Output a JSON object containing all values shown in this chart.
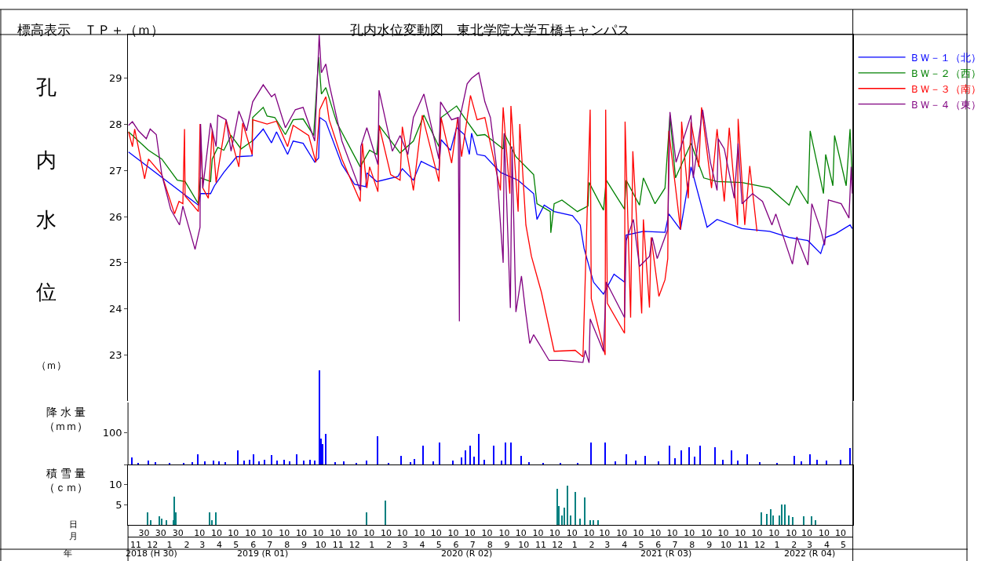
{
  "chart_data": [
    {
      "type": "line",
      "title": "孔内水位変動図　東北学院大学五橋キャンパス",
      "annotations": [
        "標高表示　ＴＰ＋（ｍ）"
      ],
      "ylabel": "孔内水位（ｍ）",
      "xlim": [
        "2018-11-01",
        "2022-06-01"
      ],
      "ylim": [
        22.02,
        29.95
      ],
      "yticks": [
        23,
        24,
        25,
        26,
        27,
        28,
        29
      ],
      "tick_labels": "y",
      "legend": "right",
      "line_style": "solid",
      "series": [
        {
          "name": "ＢＷ－１（北）",
          "color": "#0000ff",
          "x": [
            "2018-11-02",
            "2019-03-08",
            "2019-03-12",
            "2019-03-30",
            "2019-04-06",
            "2019-04-23",
            "2019-05-16",
            "2019-06-13",
            "2019-06-14",
            "2019-07-03",
            "2019-07-18",
            "2019-07-27",
            "2019-08-16",
            "2019-08-26",
            "2019-09-13",
            "2019-10-04",
            "2019-10-11",
            "2019-10-13",
            "2019-10-24",
            "2019-11-22",
            "2019-12-15",
            "2020-01-04",
            "2020-01-06",
            "2020-01-24",
            "2020-03-02",
            "2020-03-10",
            "2020-03-30",
            "2020-04-13",
            "2020-05-15",
            "2020-05-19",
            "2020-06-05",
            "2020-06-16",
            "2020-06-30",
            "2020-07-09",
            "2020-07-13",
            "2020-07-23",
            "2020-08-06",
            "2020-09-03",
            "2020-10-05",
            "2020-11-02",
            "2020-11-08",
            "2020-11-21",
            "2020-12-09",
            "2021-01-11",
            "2021-01-25",
            "2021-02-01",
            "2021-02-18",
            "2021-03-08",
            "2021-03-27",
            "2021-04-15",
            "2021-04-18",
            "2021-05-19",
            "2021-06-27",
            "2021-07-04",
            "2021-07-25",
            "2021-08-13",
            "2021-09-11",
            "2021-09-29",
            "2021-11-13",
            "2022-01-02",
            "2022-02-06",
            "2022-03-12",
            "2022-04-04",
            "2022-04-13",
            "2022-05-01",
            "2022-05-27",
            "2022-05-31"
          ],
          "values": [
            27.4,
            26.25,
            26.5,
            26.5,
            26.67,
            26.96,
            27.3,
            27.32,
            27.64,
            27.9,
            27.6,
            27.84,
            27.35,
            27.64,
            27.59,
            27.18,
            27.27,
            28.15,
            28.06,
            27.13,
            26.7,
            26.65,
            26.95,
            26.76,
            26.87,
            27.04,
            26.79,
            27.2,
            27.01,
            27.67,
            27.44,
            27.93,
            27.78,
            27.35,
            27.81,
            27.35,
            27.32,
            26.96,
            26.79,
            26.5,
            25.94,
            26.25,
            26.11,
            26.02,
            25.82,
            25.31,
            24.58,
            24.32,
            24.75,
            24.58,
            25.6,
            25.68,
            25.66,
            26.06,
            25.72,
            27.08,
            25.77,
            25.94,
            25.74,
            25.68,
            25.55,
            25.48,
            25.2,
            25.55,
            25.63,
            25.82,
            25.74
          ]
        },
        {
          "name": "ＢＷ－２（西）",
          "color": "#008000",
          "x": [
            "2018-11-02",
            "2018-12-08",
            "2019-01-01",
            "2019-01-29",
            "2019-02-12",
            "2019-03-08",
            "2019-03-12",
            "2019-03-30",
            "2019-04-02",
            "2019-04-12",
            "2019-04-23",
            "2019-05-06",
            "2019-05-24",
            "2019-06-13",
            "2019-06-14",
            "2019-07-03",
            "2019-07-10",
            "2019-07-24",
            "2019-08-12",
            "2019-08-26",
            "2019-09-13",
            "2019-10-02",
            "2019-10-11",
            "2019-10-16",
            "2019-10-24",
            "2019-11-13",
            "2019-12-25",
            "2020-01-11",
            "2020-01-24",
            "2020-01-28",
            "2020-03-06",
            "2020-03-30",
            "2020-04-18",
            "2020-05-15",
            "2020-05-19",
            "2020-06-16",
            "2020-06-30",
            "2020-07-23",
            "2020-08-06",
            "2020-09-08",
            "2020-09-10",
            "2020-10-01",
            "2020-11-02",
            "2020-11-08",
            "2020-12-02",
            "2020-12-03",
            "2020-12-09",
            "2020-12-23",
            "2021-01-20",
            "2021-02-08",
            "2021-02-10",
            "2021-03-08",
            "2021-03-13",
            "2021-04-15",
            "2021-04-18",
            "2021-05-12",
            "2021-05-19",
            "2021-06-09",
            "2021-06-27",
            "2021-07-06",
            "2021-07-16",
            "2021-08-13",
            "2021-09-05",
            "2021-09-29",
            "2021-11-13",
            "2022-01-02",
            "2022-02-06",
            "2022-02-20",
            "2022-03-12",
            "2022-03-16",
            "2022-04-09",
            "2022-04-13",
            "2022-04-26",
            "2022-04-29",
            "2022-05-20",
            "2022-05-27",
            "2022-05-31"
          ],
          "values": [
            27.84,
            27.44,
            27.25,
            26.79,
            26.76,
            26.28,
            26.84,
            26.76,
            27.25,
            27.5,
            27.44,
            27.76,
            27.47,
            27.64,
            28.15,
            28.37,
            28.18,
            28.15,
            27.78,
            28.1,
            28.12,
            27.76,
            29.46,
            28.66,
            28.8,
            28.03,
            27.08,
            27.44,
            27.35,
            27.98,
            27.38,
            27.64,
            28.2,
            27.52,
            28.15,
            28.4,
            28.15,
            27.76,
            27.78,
            27.47,
            27.8,
            27.3,
            26.91,
            26.28,
            26.11,
            25.65,
            26.28,
            26.36,
            26.11,
            26.23,
            26.74,
            26.14,
            26.79,
            26.16,
            26.79,
            26.25,
            26.84,
            26.28,
            26.62,
            28.2,
            26.84,
            27.59,
            26.84,
            26.76,
            26.74,
            26.62,
            26.25,
            26.67,
            26.28,
            27.86,
            26.5,
            27.35,
            26.67,
            27.76,
            26.67,
            27.9,
            26.79
          ]
        },
        {
          "name": "ＢＷ－３（南）",
          "color": "#ff0000",
          "x": [
            "2018-11-02",
            "2018-11-09",
            "2018-11-13",
            "2018-12-01",
            "2018-12-08",
            "2019-01-01",
            "2019-01-24",
            "2019-02-01",
            "2019-02-08",
            "2019-02-11",
            "2019-02-12",
            "2019-03-08",
            "2019-03-11",
            "2019-03-16",
            "2019-03-26",
            "2019-04-02",
            "2019-04-09",
            "2019-04-27",
            "2019-05-20",
            "2019-05-27",
            "2019-06-13",
            "2019-06-14",
            "2019-07-10",
            "2019-07-27",
            "2019-08-16",
            "2019-08-26",
            "2019-09-23",
            "2019-10-06",
            "2019-10-13",
            "2019-10-24",
            "2019-10-30",
            "2019-11-22",
            "2019-12-25",
            "2019-12-29",
            "2020-01-06",
            "2020-01-11",
            "2020-01-26",
            "2020-01-28",
            "2020-02-18",
            "2020-03-06",
            "2020-03-10",
            "2020-03-30",
            "2020-04-15",
            "2020-05-15",
            "2020-05-19",
            "2020-06-07",
            "2020-06-18",
            "2020-06-25",
            "2020-07-11",
            "2020-07-23",
            "2020-08-06",
            "2020-09-03",
            "2020-09-08",
            "2020-09-20",
            "2020-09-22",
            "2020-10-05",
            "2020-10-08",
            "2020-10-19",
            "2020-10-29",
            "2020-11-16",
            "2020-12-09",
            "2021-01-16",
            "2021-01-30",
            "2021-02-12",
            "2021-02-14",
            "2021-03-11",
            "2021-03-12",
            "2021-03-15",
            "2021-04-15",
            "2021-04-16",
            "2021-04-26",
            "2021-04-30",
            "2021-05-16",
            "2021-05-19",
            "2021-05-30",
            "2021-06-02",
            "2021-06-16",
            "2021-06-27",
            "2021-07-02",
            "2021-07-04",
            "2021-07-25",
            "2021-07-27",
            "2021-08-08",
            "2021-08-13",
            "2021-08-27",
            "2021-09-01",
            "2021-09-19",
            "2021-09-29",
            "2021-10-12",
            "2021-10-21",
            "2021-11-05",
            "2021-11-06",
            "2021-11-18",
            "2021-11-27",
            "2021-12-10"
          ],
          "values": [
            27.84,
            27.52,
            27.9,
            26.82,
            27.25,
            26.91,
            26.06,
            26.33,
            26.28,
            27.9,
            26.45,
            26.11,
            28.01,
            26.62,
            26.4,
            27.9,
            26.74,
            28.1,
            27.08,
            28.03,
            27.35,
            28.1,
            28.01,
            28.07,
            27.52,
            27.98,
            27.76,
            27.18,
            28.32,
            28.6,
            28.1,
            27.25,
            26.33,
            27.59,
            26.62,
            27.08,
            26.54,
            27.98,
            26.91,
            26.79,
            27.95,
            26.57,
            28.2,
            26.76,
            28.15,
            27.16,
            28.15,
            27.3,
            28.63,
            28.1,
            28.15,
            26.57,
            28.37,
            26.5,
            28.4,
            26.11,
            28.01,
            25.82,
            25.14,
            24.36,
            23.08,
            23.1,
            22.96,
            28.32,
            24.22,
            23.0,
            28.32,
            24.12,
            23.47,
            28.06,
            23.81,
            27.42,
            23.9,
            25.94,
            24.03,
            25.55,
            24.27,
            24.63,
            25.09,
            27.86,
            25.72,
            28.06,
            26.4,
            28.06,
            27.08,
            28.37,
            26.62,
            27.9,
            26.33,
            27.93,
            25.82,
            28.12,
            25.82,
            27.1,
            25.68
          ]
        },
        {
          "name": "ＢＷ－４（東）",
          "color": "#800080",
          "x": [
            "2018-11-02",
            "2018-11-09",
            "2018-11-20",
            "2018-12-04",
            "2018-12-11",
            "2018-12-22",
            "2019-01-01",
            "2019-01-17",
            "2019-02-02",
            "2019-02-08",
            "2019-03-02",
            "2019-03-11",
            "2019-03-12",
            "2019-03-16",
            "2019-03-30",
            "2019-04-09",
            "2019-04-12",
            "2019-04-27",
            "2019-05-06",
            "2019-05-20",
            "2019-06-03",
            "2019-06-14",
            "2019-07-03",
            "2019-07-18",
            "2019-07-24",
            "2019-08-12",
            "2019-08-30",
            "2019-09-13",
            "2019-10-04",
            "2019-10-12",
            "2019-10-16",
            "2019-10-24",
            "2019-10-30",
            "2019-11-22",
            "2019-12-25",
            "2019-12-26",
            "2020-01-06",
            "2020-01-26",
            "2020-01-28",
            "2020-02-21",
            "2020-03-06",
            "2020-03-20",
            "2020-03-30",
            "2020-04-18",
            "2020-05-15",
            "2020-05-18",
            "2020-06-07",
            "2020-06-19",
            "2020-06-21",
            "2020-06-22",
            "2020-07-05",
            "2020-07-13",
            "2020-07-26",
            "2020-08-06",
            "2020-08-16",
            "2020-08-27",
            "2020-09-08",
            "2020-09-10",
            "2020-09-21",
            "2020-09-24",
            "2020-10-01",
            "2020-10-11",
            "2020-10-18",
            "2020-10-26",
            "2020-11-02",
            "2020-11-30",
            "2020-12-23",
            "2021-01-30",
            "2021-02-03",
            "2021-02-10",
            "2021-02-12",
            "2021-03-08",
            "2021-03-13",
            "2021-04-15",
            "2021-04-18",
            "2021-05-01",
            "2021-05-12",
            "2021-05-30",
            "2021-06-04",
            "2021-06-13",
            "2021-06-22",
            "2021-07-02",
            "2021-07-06",
            "2021-07-17",
            "2021-08-13",
            "2021-08-17",
            "2021-09-03",
            "2021-09-17",
            "2021-09-29",
            "2021-10-01",
            "2021-10-12",
            "2021-10-30",
            "2021-11-06",
            "2021-11-13",
            "2021-12-02",
            "2021-12-20",
            "2022-01-06",
            "2022-01-13",
            "2022-02-12",
            "2022-02-20",
            "2022-03-12",
            "2022-03-19",
            "2022-04-04",
            "2022-04-11",
            "2022-04-18",
            "2022-05-11",
            "2022-05-25",
            "2022-05-29",
            "2022-05-31"
          ],
          "values": [
            27.98,
            28.06,
            27.86,
            27.69,
            27.9,
            27.78,
            26.91,
            26.16,
            25.82,
            26.23,
            25.29,
            25.77,
            28.01,
            26.62,
            28.03,
            27.52,
            28.2,
            28.1,
            27.42,
            28.29,
            27.86,
            28.49,
            28.86,
            28.6,
            28.66,
            27.93,
            28.32,
            28.37,
            27.64,
            29.94,
            29.12,
            29.31,
            28.88,
            27.64,
            26.57,
            27.52,
            27.93,
            27.13,
            28.74,
            27.42,
            27.76,
            27.35,
            28.15,
            28.66,
            27.25,
            28.49,
            28.1,
            28.15,
            23.73,
            28.15,
            28.88,
            29.0,
            29.12,
            28.49,
            28.15,
            27.08,
            25.0,
            27.81,
            24.02,
            27.52,
            23.93,
            24.71,
            23.98,
            23.25,
            23.44,
            22.88,
            22.88,
            22.84,
            23.1,
            22.83,
            23.78,
            23.08,
            24.58,
            23.81,
            25.48,
            25.94,
            24.92,
            25.14,
            25.55,
            25.09,
            25.39,
            25.72,
            28.27,
            27.18,
            28.2,
            26.84,
            28.32,
            27.18,
            26.57,
            27.69,
            27.47,
            26.4,
            27.59,
            26.28,
            26.5,
            26.33,
            25.82,
            26.06,
            24.97,
            25.56,
            24.95,
            26.28,
            25.72,
            25.38,
            26.36,
            26.28,
            25.97,
            27.08,
            26.5
          ]
        }
      ]
    },
    {
      "type": "bar",
      "ylabel": "降 水 量（ｍｍ）",
      "xlim": [
        "2018-11-01",
        "2022-06-01"
      ],
      "ylim": [
        0,
        302.5
      ],
      "yticks": [
        {
          "value": 0,
          "label": null
        },
        100
      ],
      "tick_labels": "y",
      "series": [
        {
          "color": "#0000ff",
          "x": [
            "2018-11-08",
            "2018-11-20",
            "2018-12-08",
            "2018-12-20",
            "2019-01-15",
            "2019-02-10",
            "2019-02-25",
            "2019-03-07",
            "2019-03-20",
            "2019-04-05",
            "2019-04-14",
            "2019-04-25",
            "2019-05-19",
            "2019-05-30",
            "2019-06-08",
            "2019-06-16",
            "2019-06-25",
            "2019-07-06",
            "2019-07-18",
            "2019-07-28",
            "2019-08-10",
            "2019-08-20",
            "2019-09-02",
            "2019-09-15",
            "2019-09-25",
            "2019-10-04",
            "2019-10-12",
            "2019-10-15",
            "2019-10-19",
            "2019-10-24",
            "2019-11-10",
            "2019-11-25",
            "2019-12-18",
            "2020-01-06",
            "2020-01-26",
            "2020-02-15",
            "2020-03-08",
            "2020-03-25",
            "2020-04-01",
            "2020-04-16",
            "2020-05-05",
            "2020-05-17",
            "2020-06-10",
            "2020-06-25",
            "2020-07-02",
            "2020-07-10",
            "2020-07-18",
            "2020-07-26",
            "2020-08-05",
            "2020-08-22",
            "2020-09-05",
            "2020-09-13",
            "2020-09-22",
            "2020-10-10",
            "2020-10-25",
            "2020-11-20",
            "2020-12-20",
            "2021-01-20",
            "2021-02-14",
            "2021-03-11",
            "2021-03-30",
            "2021-04-18",
            "2021-05-05",
            "2021-05-22",
            "2021-06-15",
            "2021-07-05",
            "2021-07-15",
            "2021-07-27",
            "2021-08-10",
            "2021-08-20",
            "2021-08-30",
            "2021-09-26",
            "2021-10-10",
            "2021-10-25",
            "2021-11-05",
            "2021-11-22",
            "2021-12-15",
            "2022-01-15",
            "2022-02-16",
            "2022-02-28",
            "2022-03-16",
            "2022-03-28",
            "2022-04-15",
            "2022-05-10",
            "2022-05-27"
          ],
          "values": [
            23,
            6,
            12,
            8,
            5,
            6,
            8,
            33,
            10,
            12,
            10,
            8,
            44,
            12,
            15,
            33,
            10,
            14,
            31,
            12,
            15,
            10,
            33,
            12,
            15,
            12,
            297,
            81,
            64,
            96,
            8,
            10,
            6,
            12,
            89,
            6,
            27,
            8,
            17,
            60,
            10,
            69,
            12,
            23,
            44,
            60,
            25,
            96,
            15,
            60,
            12,
            69,
            69,
            27,
            8,
            6,
            5,
            6,
            69,
            69,
            10,
            33,
            12,
            27,
            10,
            60,
            20,
            44,
            54,
            25,
            60,
            54,
            15,
            44,
            12,
            33,
            8,
            6,
            27,
            10,
            33,
            15,
            12,
            15,
            52
          ]
        }
      ]
    },
    {
      "type": "bar",
      "ylabel": "積 雪 量（ｃｍ）",
      "xlim": [
        "2018-11-01",
        "2022-06-01"
      ],
      "ylim": [
        0,
        14.8
      ],
      "yticks": [
        5,
        10
      ],
      "xlabel": "日",
      "x2label": "月",
      "annotations": [
        "年",
        "2018 (H 30)",
        "2019 (R 01)",
        "2020 (R 02)",
        "2021 (R 03)",
        "2022 (R 04)"
      ],
      "x2lim": [
        "2018-11-01",
        "2022-06-01"
      ],
      "xticks": [
        {
          "value": "2018-11-30",
          "label": "30"
        },
        {
          "value": "2018-12-30",
          "label": "30"
        },
        {
          "value": "2019-01-30",
          "label": "30"
        },
        {
          "value": "2019-03-10",
          "label": "10"
        },
        {
          "value": "2019-04-10",
          "label": "10"
        },
        {
          "value": "2019-05-10",
          "label": "10"
        },
        {
          "value": "2019-06-10",
          "label": "10"
        },
        {
          "value": "2019-07-10",
          "label": "10"
        },
        {
          "value": "2019-08-10",
          "label": "10"
        },
        {
          "value": "2019-09-10",
          "label": "10"
        },
        {
          "value": "2019-10-10",
          "label": "10"
        },
        {
          "value": "2019-11-10",
          "label": "10"
        },
        {
          "value": "2019-12-10",
          "label": "10"
        },
        {
          "value": "2020-01-10",
          "label": "10"
        },
        {
          "value": "2020-02-10",
          "label": "10"
        },
        {
          "value": "2020-03-10",
          "label": "10"
        },
        {
          "value": "2020-04-10",
          "label": "10"
        },
        {
          "value": "2020-05-10",
          "label": "10"
        },
        {
          "value": "2020-06-10",
          "label": "10"
        },
        {
          "value": "2020-07-10",
          "label": "10"
        },
        {
          "value": "2020-08-10",
          "label": "10"
        },
        {
          "value": "2020-09-10",
          "label": "10"
        },
        {
          "value": "2020-10-10",
          "label": "10"
        },
        {
          "value": "2020-11-10",
          "label": "10"
        },
        {
          "value": "2020-12-10",
          "label": "10"
        },
        {
          "value": "2021-01-10",
          "label": "10"
        },
        {
          "value": "2021-02-10",
          "label": "10"
        },
        {
          "value": "2021-03-10",
          "label": "10"
        },
        {
          "value": "2021-04-10",
          "label": "10"
        },
        {
          "value": "2021-05-10",
          "label": "10"
        },
        {
          "value": "2021-06-10",
          "label": "10"
        },
        {
          "value": "2021-07-10",
          "label": "10"
        },
        {
          "value": "2021-08-10",
          "label": "10"
        },
        {
          "value": "2021-09-10",
          "label": "10"
        },
        {
          "value": "2021-10-10",
          "label": "10"
        },
        {
          "value": "2021-11-10",
          "label": "10"
        },
        {
          "value": "2021-12-10",
          "label": "10"
        },
        {
          "value": "2022-01-10",
          "label": "10"
        },
        {
          "value": "2022-02-10",
          "label": "10"
        },
        {
          "value": "2022-03-10",
          "label": "10"
        },
        {
          "value": "2022-04-10",
          "label": "10"
        },
        {
          "value": "2022-05-10",
          "label": "10"
        }
      ],
      "x2ticks": [
        {
          "value": "2018-11-15",
          "label": "11"
        },
        {
          "value": "2018-12-15",
          "label": "12"
        },
        {
          "value": "2019-01-15",
          "label": "1"
        },
        {
          "value": "2019-02-15",
          "label": "2"
        },
        {
          "value": "2019-03-15",
          "label": "3"
        },
        {
          "value": "2019-04-15",
          "label": "4"
        },
        {
          "value": "2019-05-15",
          "label": "5"
        },
        {
          "value": "2019-06-15",
          "label": "6"
        },
        {
          "value": "2019-07-15",
          "label": "7"
        },
        {
          "value": "2019-08-15",
          "label": "8"
        },
        {
          "value": "2019-09-15",
          "label": "9"
        },
        {
          "value": "2019-10-15",
          "label": "10"
        },
        {
          "value": "2019-11-15",
          "label": "11"
        },
        {
          "value": "2019-12-15",
          "label": "12"
        },
        {
          "value": "2020-01-15",
          "label": "1"
        },
        {
          "value": "2020-02-15",
          "label": "2"
        },
        {
          "value": "2020-03-15",
          "label": "3"
        },
        {
          "value": "2020-04-15",
          "label": "4"
        },
        {
          "value": "2020-05-15",
          "label": "5"
        },
        {
          "value": "2020-06-15",
          "label": "6"
        },
        {
          "value": "2020-07-15",
          "label": "7"
        },
        {
          "value": "2020-08-15",
          "label": "8"
        },
        {
          "value": "2020-09-15",
          "label": "9"
        },
        {
          "value": "2020-10-15",
          "label": "10"
        },
        {
          "value": "2020-11-15",
          "label": "11"
        },
        {
          "value": "2020-12-15",
          "label": "12"
        },
        {
          "value": "2021-01-15",
          "label": "1"
        },
        {
          "value": "2021-02-15",
          "label": "2"
        },
        {
          "value": "2021-03-15",
          "label": "3"
        },
        {
          "value": "2021-04-15",
          "label": "4"
        },
        {
          "value": "2021-05-15",
          "label": "5"
        },
        {
          "value": "2021-06-15",
          "label": "6"
        },
        {
          "value": "2021-07-15",
          "label": "7"
        },
        {
          "value": "2021-08-15",
          "label": "8"
        },
        {
          "value": "2021-09-15",
          "label": "9"
        },
        {
          "value": "2021-10-15",
          "label": "10"
        },
        {
          "value": "2021-11-15",
          "label": "11"
        },
        {
          "value": "2021-12-15",
          "label": "12"
        },
        {
          "value": "2022-01-15",
          "label": "1"
        },
        {
          "value": "2022-02-15",
          "label": "2"
        },
        {
          "value": "2022-03-15",
          "label": "3"
        },
        {
          "value": "2022-04-15",
          "label": "4"
        },
        {
          "value": "2022-05-15",
          "label": "5"
        }
      ],
      "series": [
        {
          "color": "#008080",
          "x": [
            "2018-12-06",
            "2018-12-12",
            "2018-12-28",
            "2019-01-01",
            "2019-01-10",
            "2019-01-22",
            "2019-01-24",
            "2019-01-27",
            "2019-03-28",
            "2019-04-02",
            "2019-04-09",
            "2020-01-06",
            "2020-02-09",
            "2020-12-15",
            "2020-12-18",
            "2020-12-23",
            "2020-12-28",
            "2021-01-02",
            "2021-01-08",
            "2021-01-16",
            "2021-01-25",
            "2021-02-02",
            "2021-02-12",
            "2021-02-18",
            "2021-02-27",
            "2021-12-18",
            "2021-12-28",
            "2022-01-04",
            "2022-01-09",
            "2022-01-20",
            "2022-01-24",
            "2022-01-30",
            "2022-02-05",
            "2022-02-12",
            "2022-03-05",
            "2022-03-18",
            "2022-03-26"
          ],
          "values": [
            3.1,
            1.2,
            2.2,
            1.6,
            1.2,
            1.2,
            7.1,
            3.1,
            3.1,
            1.2,
            3.1,
            3.1,
            6.0,
            9.0,
            4.6,
            2.4,
            4.3,
            9.7,
            2.4,
            8.2,
            1.6,
            6.8,
            1.2,
            1.2,
            1.2,
            3.1,
            2.8,
            3.8,
            2.4,
            2.4,
            5.1,
            5.1,
            2.4,
            1.9,
            2.2,
            2.2,
            1.2
          ]
        }
      ]
    }
  ]
}
